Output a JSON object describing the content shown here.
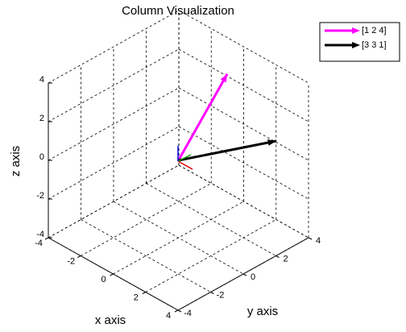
{
  "chart_data": {
    "type": "quiver3d",
    "title": "Column Visualization",
    "xlabel": "x axis",
    "ylabel": "y axis",
    "zlabel": "z axis",
    "xlim": [
      -4,
      4
    ],
    "ylim": [
      -4,
      4
    ],
    "zlim": [
      -4,
      4
    ],
    "xticks": [
      -4,
      -2,
      0,
      2,
      4
    ],
    "yticks": [
      -4,
      -2,
      0,
      2,
      4
    ],
    "zticks": [
      -4,
      -2,
      0,
      2,
      4
    ],
    "grid": true,
    "legend": "northeast",
    "series": [
      {
        "name": "[1 2 4]",
        "color": "#ff00ff",
        "values": [
          1,
          2,
          4
        ]
      },
      {
        "name": "[3 3 1]",
        "color": "#000000",
        "values": [
          3,
          3,
          1
        ]
      }
    ]
  }
}
